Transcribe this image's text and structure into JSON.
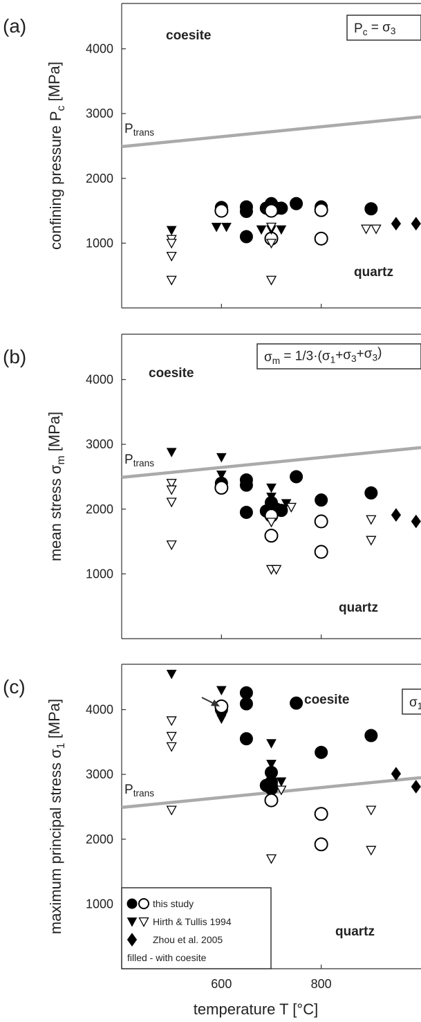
{
  "chart_data": [
    {
      "type": "scatter",
      "panel_label": "(a)",
      "ylabel": [
        "confining pressure P",
        "c",
        " [MPa]"
      ],
      "box_label": [
        "P",
        "c",
        " = σ",
        "3"
      ],
      "annotations": [
        "coesite",
        "quartz"
      ],
      "xlim": [
        400,
        1000
      ],
      "ylim": [
        0,
        4700
      ],
      "xticks": [
        600,
        800
      ],
      "xtick_labels": false,
      "yticks": [
        1000,
        2000,
        3000,
        4000
      ],
      "series": [
        {
          "kind": "line",
          "label": [
            "P",
            "trans"
          ],
          "color": "#aaaaaa",
          "x": [
            400,
            1000
          ],
          "values": [
            2490,
            2950
          ]
        },
        {
          "marker": "circle",
          "color": "#000000",
          "x": [
            600,
            650,
            650,
            650,
            690,
            700,
            700,
            710,
            720,
            750,
            800,
            900,
            600,
            700,
            700,
            800,
            800
          ],
          "values": [
            1550,
            1560,
            1490,
            1100,
            1540,
            1610,
            1550,
            1540,
            1540,
            1610,
            1560,
            1530,
            1500,
            1500,
            1070,
            1510,
            1070
          ],
          "filled": [
            true,
            true,
            true,
            true,
            true,
            true,
            true,
            true,
            true,
            true,
            true,
            true,
            false,
            false,
            false,
            false,
            false
          ]
        },
        {
          "marker": "triangle",
          "color": "#000000",
          "x": [
            500,
            590,
            610,
            680,
            700,
            720,
            500,
            500,
            500,
            500,
            700,
            700,
            700,
            890,
            910
          ],
          "values": [
            1200,
            1250,
            1250,
            1210,
            1210,
            1210,
            1060,
            1000,
            800,
            430,
            1250,
            1000,
            430,
            1220,
            1220
          ],
          "filled": [
            true,
            true,
            true,
            true,
            true,
            true,
            false,
            false,
            false,
            false,
            false,
            false,
            false,
            false,
            false
          ]
        },
        {
          "marker": "diamond",
          "color": "#000000",
          "x": [
            950,
            990
          ],
          "values": [
            1300,
            1300
          ],
          "filled": [
            true,
            true
          ]
        }
      ]
    },
    {
      "type": "scatter",
      "panel_label": "(b)",
      "ylabel": [
        "mean stress σ",
        "m",
        " [MPa]"
      ],
      "box_label": [
        "σ",
        "m",
        " = 1/3·(σ",
        "1",
        "+σ",
        "3",
        "+σ",
        "3",
        ")"
      ],
      "annotations": [
        "coesite",
        "quartz"
      ],
      "xlim": [
        400,
        1000
      ],
      "ylim": [
        0,
        4700
      ],
      "xticks": [
        600,
        800
      ],
      "xtick_labels": false,
      "yticks": [
        1000,
        2000,
        3000,
        4000
      ],
      "series": [
        {
          "kind": "line",
          "label": [
            "P",
            "trans"
          ],
          "color": "#aaaaaa",
          "x": [
            400,
            1000
          ],
          "values": [
            2490,
            2950
          ]
        },
        {
          "marker": "circle",
          "color": "#000000",
          "x": [
            600,
            650,
            650,
            650,
            690,
            700,
            700,
            700,
            710,
            720,
            750,
            800,
            900,
            600,
            700,
            700,
            800,
            800
          ],
          "values": [
            2400,
            2450,
            2370,
            1950,
            1970,
            2000,
            2100,
            1960,
            2000,
            1980,
            2500,
            2140,
            2250,
            2330,
            1900,
            1590,
            1810,
            1340
          ],
          "filled": [
            true,
            true,
            true,
            true,
            true,
            true,
            true,
            true,
            true,
            true,
            true,
            true,
            true,
            false,
            false,
            false,
            false,
            false
          ]
        },
        {
          "marker": "triangle",
          "color": "#000000",
          "x": [
            500,
            600,
            600,
            700,
            700,
            700,
            730,
            500,
            500,
            500,
            500,
            700,
            700,
            710,
            740,
            900,
            900
          ],
          "values": [
            2880,
            2800,
            2530,
            2330,
            2190,
            2060,
            2090,
            2400,
            2300,
            2110,
            1450,
            1800,
            1070,
            1070,
            2030,
            1840,
            1520
          ],
          "filled": [
            true,
            true,
            true,
            true,
            true,
            true,
            true,
            false,
            false,
            false,
            false,
            false,
            false,
            false,
            false,
            false,
            false
          ]
        },
        {
          "marker": "diamond",
          "color": "#000000",
          "x": [
            950,
            990
          ],
          "values": [
            1910,
            1810
          ],
          "filled": [
            true,
            true
          ]
        }
      ]
    },
    {
      "type": "scatter",
      "panel_label": "(c)",
      "ylabel": [
        "maximum principal stress σ",
        "1",
        " [MPa]"
      ],
      "xlabel": "temperature T [°C]",
      "box_label": [
        "σ",
        "1"
      ],
      "annotations": [
        "coesite",
        "quartz"
      ],
      "xlim": [
        400,
        1000
      ],
      "ylim": [
        0,
        4700
      ],
      "xticks": [
        600,
        800
      ],
      "xtick_labels": true,
      "yticks": [
        1000,
        2000,
        3000,
        4000
      ],
      "legend": "lower left",
      "legend_note": "filled - with coesite",
      "series": [
        {
          "kind": "line",
          "label": [
            "P",
            "trans"
          ],
          "color": "#aaaaaa",
          "x": [
            400,
            1000
          ],
          "values": [
            2490,
            2950
          ]
        },
        {
          "name": "this study",
          "marker": "circle",
          "color": "#000000",
          "x": [
            600,
            650,
            650,
            650,
            690,
            700,
            700,
            700,
            700,
            750,
            800,
            900,
            600,
            700,
            800,
            800
          ],
          "values": [
            4000,
            4260,
            4090,
            3550,
            2830,
            3030,
            2880,
            2820,
            2780,
            4100,
            3340,
            3600,
            4050,
            2600,
            2390,
            1920
          ],
          "filled": [
            true,
            true,
            true,
            true,
            true,
            true,
            true,
            true,
            true,
            true,
            true,
            true,
            false,
            false,
            false,
            false
          ]
        },
        {
          "name": "Hirth & Tullis 1994",
          "marker": "triangle",
          "color": "#000000",
          "x": [
            500,
            600,
            600,
            700,
            700,
            700,
            720,
            500,
            500,
            500,
            500,
            700,
            720,
            900,
            900
          ],
          "values": [
            4550,
            4300,
            3860,
            3480,
            3160,
            2950,
            2890,
            3830,
            3590,
            3430,
            2450,
            1700,
            2760,
            2450,
            1830
          ],
          "filled": [
            true,
            true,
            true,
            true,
            true,
            true,
            true,
            false,
            false,
            false,
            false,
            false,
            false,
            false,
            false
          ]
        },
        {
          "name": "Zhou et al. 2005",
          "marker": "diamond",
          "color": "#000000",
          "x": [
            950,
            990
          ],
          "values": [
            3010,
            2810
          ],
          "filled": [
            true,
            true
          ]
        }
      ]
    }
  ]
}
